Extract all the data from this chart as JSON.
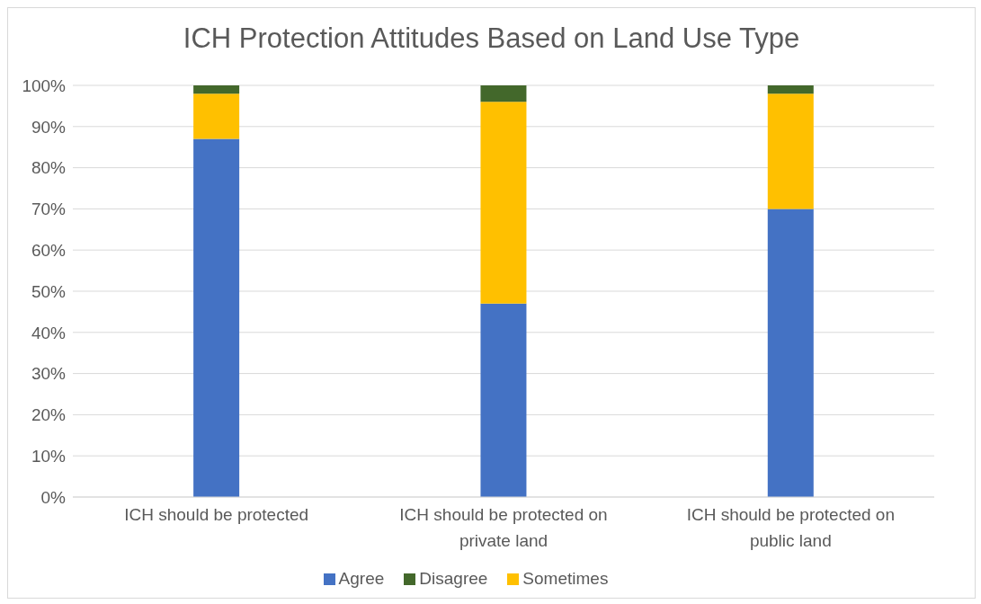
{
  "chart_data": {
    "type": "bar",
    "title": "ICH Protection Attitudes Based on Land Use Type",
    "categories": [
      "ICH should be protected",
      "ICH should be protected on private land",
      "ICH should be protected on public land"
    ],
    "stacked": true,
    "series": [
      {
        "name": "Agree",
        "color": "#4472c4",
        "values": [
          87,
          47,
          70
        ]
      },
      {
        "name": "Sometimes",
        "color": "#ffc000",
        "values": [
          11,
          49,
          28
        ]
      },
      {
        "name": "Disagree",
        "color": "#43682b",
        "values": [
          2,
          4,
          2
        ]
      }
    ],
    "ylim": [
      0,
      100
    ],
    "yticks": [
      {
        "value": 0,
        "label": "0%"
      },
      {
        "value": 10,
        "label": "10%"
      },
      {
        "value": 20,
        "label": "20%"
      },
      {
        "value": 30,
        "label": "30%"
      },
      {
        "value": 40,
        "label": "40%"
      },
      {
        "value": 50,
        "label": "50%"
      },
      {
        "value": 60,
        "label": "60%"
      },
      {
        "value": 70,
        "label": "70%"
      },
      {
        "value": 80,
        "label": "80%"
      },
      {
        "value": 90,
        "label": "90%"
      },
      {
        "value": 100,
        "label": "100%"
      }
    ],
    "grid": "y",
    "legend": "bottom"
  }
}
